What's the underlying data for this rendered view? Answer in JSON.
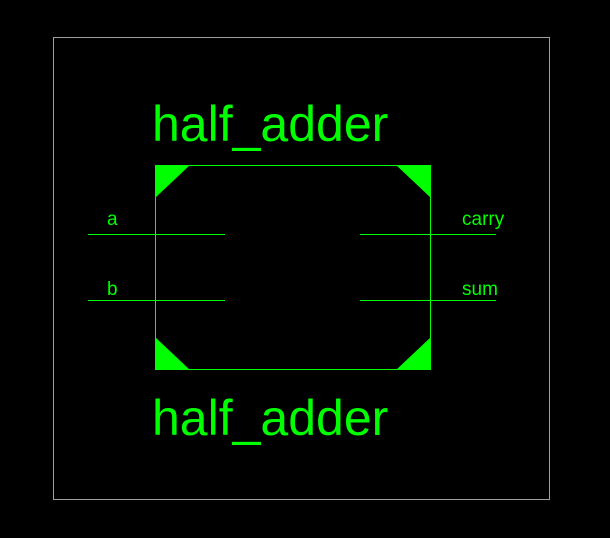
{
  "schematic": {
    "component_name_top": "half_adder",
    "component_name_bottom": "half_adder",
    "inputs": [
      {
        "name": "a"
      },
      {
        "name": "b"
      }
    ],
    "outputs": [
      {
        "name": "carry"
      },
      {
        "name": "sum"
      }
    ]
  },
  "colors": {
    "background": "#000000",
    "border": "#a0a0a0",
    "symbol": "#00ff00"
  }
}
